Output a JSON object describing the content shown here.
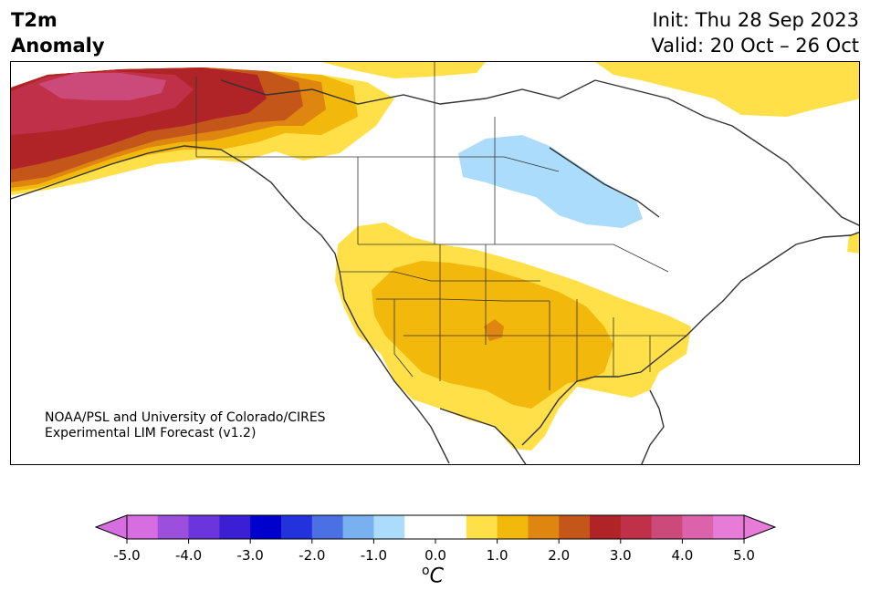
{
  "header": {
    "variable_line1": "T2m",
    "variable_line2": "Anomaly",
    "init": "Init: Thu 28 Sep 2023",
    "valid": "Valid: 20 Oct – 26 Oct"
  },
  "credit": {
    "line1": "NOAA/PSL and University of Colorado/CIRES",
    "line2": "Experimental LIM Forecast (v1.2)"
  },
  "colorbar": {
    "unit_label": "C",
    "unit_prefix": "o",
    "ticks": [
      "-5.0",
      "-4.0",
      "-3.0",
      "-2.0",
      "-1.0",
      "0.0",
      "1.0",
      "2.0",
      "3.0",
      "4.0",
      "5.0"
    ],
    "colors": [
      "#d66de0",
      "#9b4fdc",
      "#6a35dd",
      "#3a1fd4",
      "#0000cc",
      "#2233dd",
      "#4a70e3",
      "#79b0f0",
      "#acdcfb",
      "#ffffff",
      "#ffffff",
      "#ffe048",
      "#f2b80b",
      "#de860f",
      "#c5561a",
      "#b02326",
      "#c03048",
      "#cc4a7a",
      "#dc62ac",
      "#e67bd8"
    ],
    "under_color": "#d66de0",
    "over_color": "#e67bd8"
  },
  "map": {
    "region": "North America",
    "field": "2m temperature anomaly"
  }
}
